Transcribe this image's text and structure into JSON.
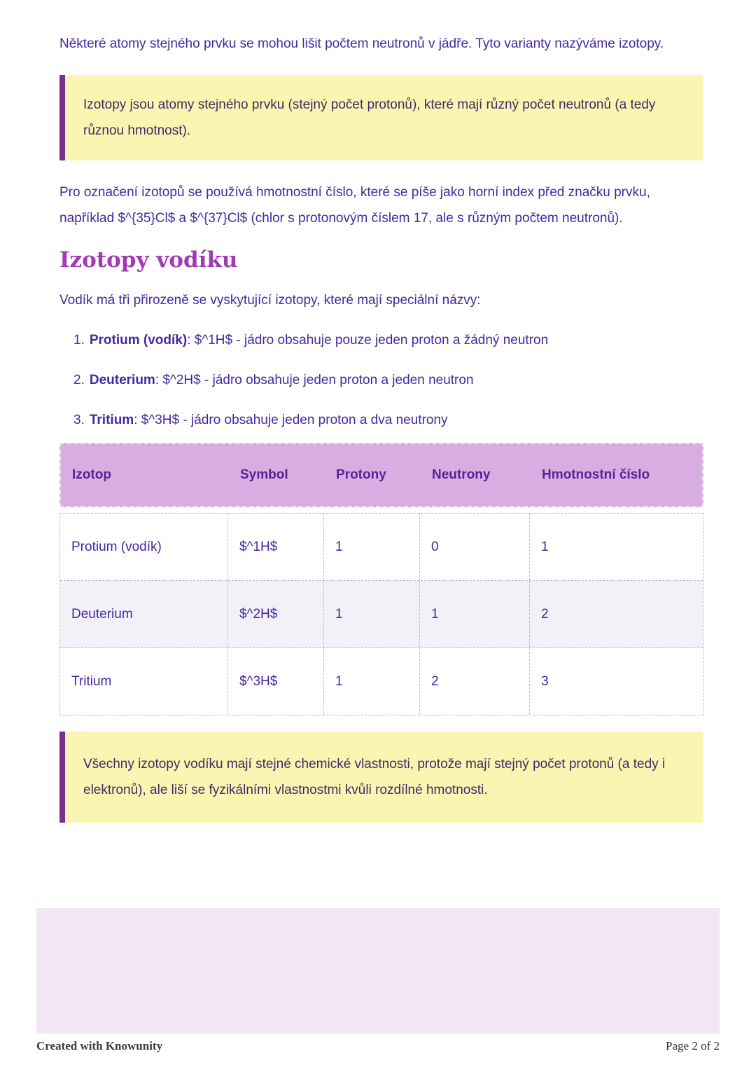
{
  "content": {
    "intro_paragraph": "Některé atomy stejného prvku se mohou lišit počtem neutronů v jádře. Tyto varianty nazýváme izotopy.",
    "definition_callout": "Izotopy jsou atomy stejného prvku (stejný počet protonů), které mají různý počet neutronů (a tedy různou hmotnost).",
    "notation_paragraph": "Pro označení izotopů se používá hmotnostní číslo, které se píše jako horní index před značku prvku, například $^{35}Cl$ a $^{37}Cl$ (chlor s protonovým číslem 17, ale s různým počtem neutronů).",
    "section_heading": "Izotopy vodíku",
    "section_intro": "Vodík má tři přirozeně se vyskytující izotopy, které mají speciální názvy:",
    "list": [
      {
        "num": "1.",
        "term": "Protium (vodík)",
        "rest": ": $^1H$ - jádro obsahuje pouze jeden proton a žádný neutron"
      },
      {
        "num": "2.",
        "term": "Deuterium",
        "rest": ": $^2H$ - jádro obsahuje jeden proton a jeden neutron"
      },
      {
        "num": "3.",
        "term": "Tritium",
        "rest": ": $^3H$ - jádro obsahuje jeden proton a dva neutrony"
      }
    ],
    "properties_callout": "Všechny izotopy vodíku mají stejné chemické vlastnosti, protože mají stejný počet protonů (a tedy i elektronů), ale liší se fyzikálními vlastnostmi kvůli rozdílné hmotnosti."
  },
  "table": {
    "headers": [
      "Izotop",
      "Symbol",
      "Protony",
      "Neutrony",
      "Hmotnostní číslo"
    ],
    "rows": [
      {
        "cells": [
          "Protium (vodík)",
          "$^1H$",
          "1",
          "0",
          "1"
        ]
      },
      {
        "cells": [
          "Deuterium",
          "$^2H$",
          "1",
          "1",
          "2"
        ]
      },
      {
        "cells": [
          "Tritium",
          "$^3H$",
          "1",
          "2",
          "3"
        ]
      }
    ]
  },
  "footer": {
    "left": "Created with Knowunity",
    "right": "Page 2 of 2"
  },
  "colors": {
    "body_text": "#45289f",
    "heading_purple": "#a23ab5",
    "callout_background": "#faf6b2",
    "callout_border": "#7b2f8f",
    "table_header_background": "#d9ade2",
    "table_header_text": "#5c1f9c",
    "table_alt_row_background": "#f1f1f7",
    "bottom_box_background": "#f2e6f4"
  }
}
